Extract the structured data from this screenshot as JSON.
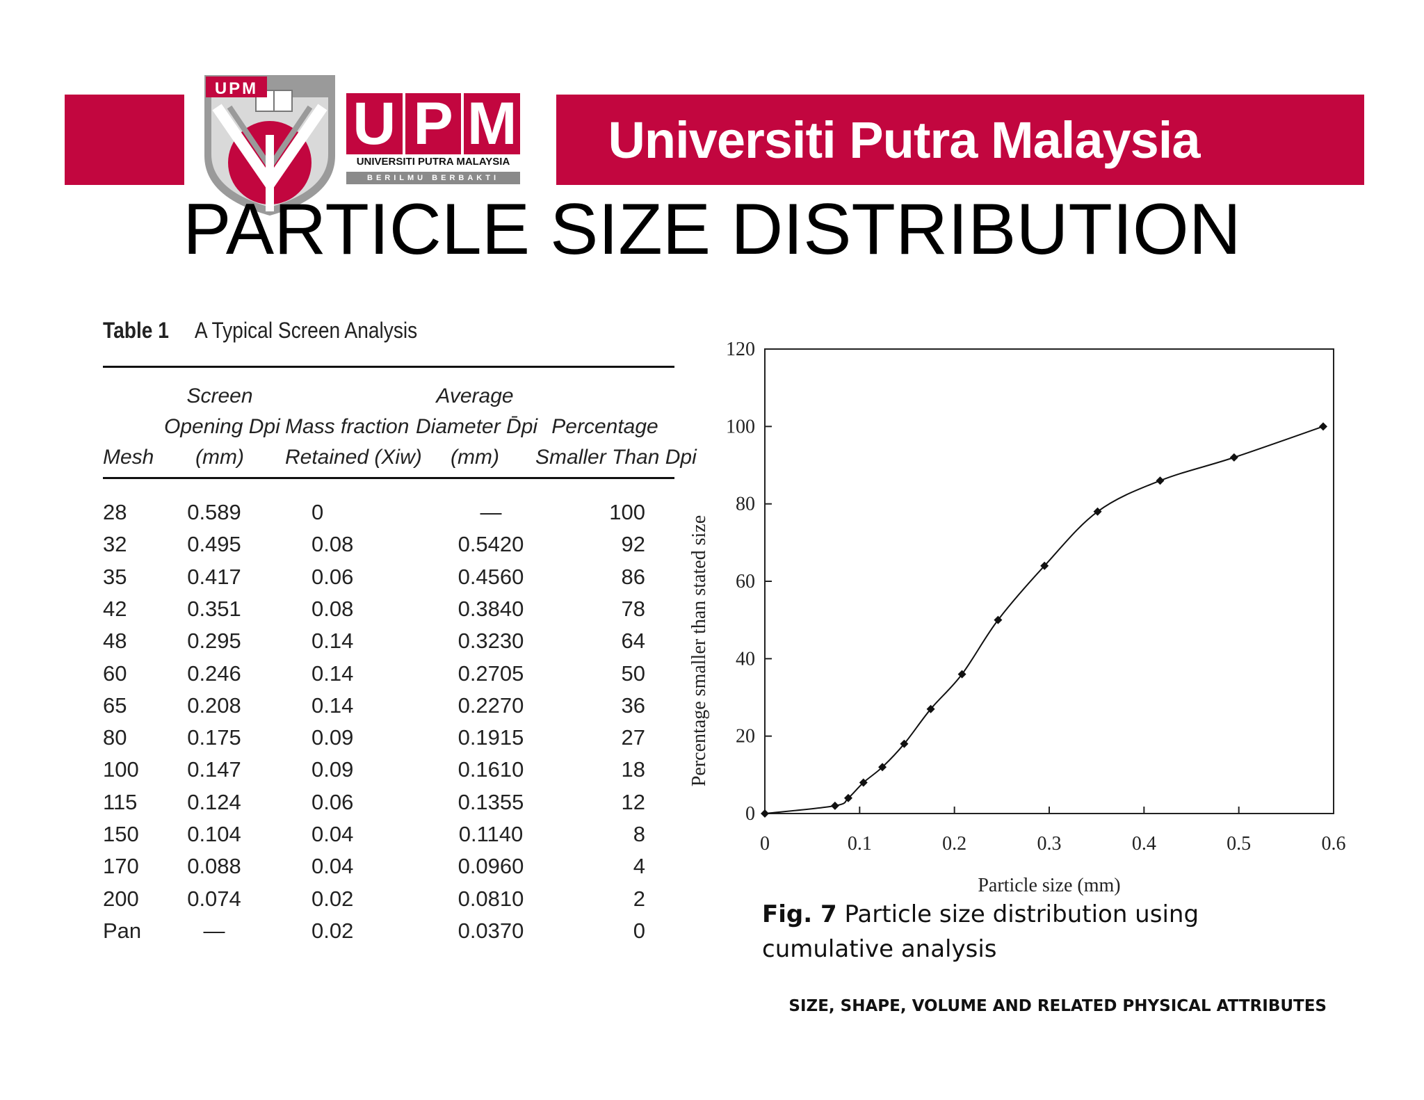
{
  "header": {
    "crest_text": "UPM",
    "wordmark": [
      "U",
      "P",
      "M"
    ],
    "wordmark_sub": "UNIVERSITI PUTRA MALAYSIA",
    "wordmark_motto": "BERILMU BERBAKTI",
    "banner_name": "Universiti Putra Malaysia",
    "brand_color": "#c2063f"
  },
  "page_title": "PARTICLE SIZE DISTRIBUTION",
  "table": {
    "caption_number": "Table 1",
    "caption_title": "A Typical Screen Analysis",
    "headers": {
      "mesh": [
        "Mesh"
      ],
      "opening": [
        "Screen",
        "Opening Dpi",
        "(mm)"
      ],
      "mass": [
        "Mass fraction",
        "Retained (Xiw)"
      ],
      "average": [
        "Average",
        "Diameter D̄pi",
        "(mm)"
      ],
      "percent": [
        "Percentage",
        "Smaller Than Dpi"
      ]
    },
    "rows": [
      {
        "mesh": "28",
        "opening": "0.589",
        "mass": "0",
        "avg": "—",
        "pct": "100"
      },
      {
        "mesh": "32",
        "opening": "0.495",
        "mass": "0.08",
        "avg": "0.5420",
        "pct": "92"
      },
      {
        "mesh": "35",
        "opening": "0.417",
        "mass": "0.06",
        "avg": "0.4560",
        "pct": "86"
      },
      {
        "mesh": "42",
        "opening": "0.351",
        "mass": "0.08",
        "avg": "0.3840",
        "pct": "78"
      },
      {
        "mesh": "48",
        "opening": "0.295",
        "mass": "0.14",
        "avg": "0.3230",
        "pct": "64"
      },
      {
        "mesh": "60",
        "opening": "0.246",
        "mass": "0.14",
        "avg": "0.2705",
        "pct": "50"
      },
      {
        "mesh": "65",
        "opening": "0.208",
        "mass": "0.14",
        "avg": "0.2270",
        "pct": "36"
      },
      {
        "mesh": "80",
        "opening": "0.175",
        "mass": "0.09",
        "avg": "0.1915",
        "pct": "27"
      },
      {
        "mesh": "100",
        "opening": "0.147",
        "mass": "0.09",
        "avg": "0.1610",
        "pct": "18"
      },
      {
        "mesh": "115",
        "opening": "0.124",
        "mass": "0.06",
        "avg": "0.1355",
        "pct": "12"
      },
      {
        "mesh": "150",
        "opening": "0.104",
        "mass": "0.04",
        "avg": "0.1140",
        "pct": "8"
      },
      {
        "mesh": "170",
        "opening": "0.088",
        "mass": "0.04",
        "avg": "0.0960",
        "pct": "4"
      },
      {
        "mesh": "200",
        "opening": "0.074",
        "mass": "0.02",
        "avg": "0.0810",
        "pct": "2"
      },
      {
        "mesh": "Pan",
        "opening": "—",
        "mass": "0.02",
        "avg": "0.0370",
        "pct": "0"
      }
    ]
  },
  "chart_data": {
    "type": "line",
    "title": "",
    "xlabel": "Particle size (mm)",
    "ylabel": "Percentage smaller than stated size",
    "xlim": [
      0,
      0.6
    ],
    "ylim": [
      0,
      120
    ],
    "xticks": [
      "0",
      "0.1",
      "0.2",
      "0.3",
      "0.4",
      "0.5",
      "0.6"
    ],
    "yticks": [
      "0",
      "20",
      "40",
      "60",
      "80",
      "100",
      "120"
    ],
    "grid": false,
    "legend": "none",
    "series": [
      {
        "x": [
          0,
          0.074,
          0.088,
          0.104,
          0.124,
          0.147,
          0.175,
          0.208,
          0.246,
          0.295,
          0.351,
          0.417,
          0.495,
          0.589
        ],
        "y": [
          0,
          2,
          4,
          8,
          12,
          18,
          27,
          36,
          50,
          64,
          78,
          86,
          92,
          100
        ]
      }
    ]
  },
  "figure_caption": {
    "label": "Fig. 7",
    "text": "Particle size distribution using cumulative analysis"
  },
  "footer": "SIZE, SHAPE, VOLUME AND RELATED PHYSICAL ATTRIBUTES"
}
